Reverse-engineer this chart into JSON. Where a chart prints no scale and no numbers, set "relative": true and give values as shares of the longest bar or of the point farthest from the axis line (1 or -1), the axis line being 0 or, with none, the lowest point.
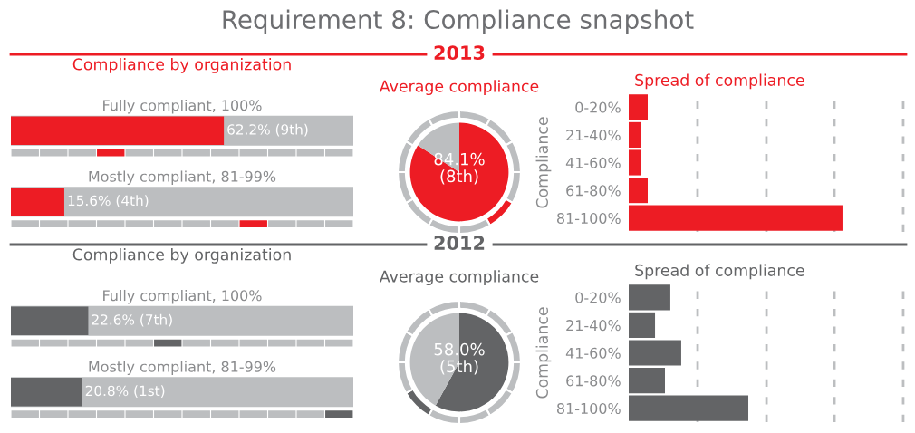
{
  "chart_data": [
    {
      "type": "other",
      "title": "Requirement 8: Compliance snapshot",
      "annotations": [
        "2013",
        "2012"
      ]
    },
    {
      "type": "bar",
      "orientation": "horizontal",
      "title": "Compliance by organization",
      "categories": [
        "Fully compliant, 100%",
        "Mostly compliant, 81-99%"
      ],
      "values": [
        62.2,
        15.6
      ],
      "value_labels": [
        "62.2% (9th)",
        "15.6% (4th)"
      ],
      "color": "#ed1c24",
      "xlim": [
        0,
        100
      ]
    },
    {
      "type": "pie",
      "title": "Average compliance",
      "series": [
        {
          "values": [
            84.1,
            15.9
          ],
          "colors": [
            "#ed1c24",
            "#bcbec0"
          ],
          "value_labels": [
            "84.1%\n(8th)",
            null
          ]
        },
        {
          "values": [
            8.33,
            8.33,
            8.33,
            8.33,
            8.33,
            8.33,
            8.33,
            8.33,
            8.33,
            8.33,
            8.33,
            8.33
          ],
          "colors": [
            "#bcbec0",
            "#bcbec0",
            "#bcbec0",
            "#bcbec0",
            "#ed1c24",
            "#bcbec0",
            "#bcbec0",
            "#bcbec0",
            "#bcbec0",
            "#bcbec0",
            "#bcbec0",
            "#bcbec0"
          ]
        }
      ]
    },
    {
      "type": "bar",
      "orientation": "horizontal",
      "relative": true,
      "title": "Spread of compliance",
      "ylabel": "Compliance",
      "categories": [
        "0-20%",
        "21-40%",
        "41-60%",
        "61-80%",
        "81-100%"
      ],
      "values": [
        0.089,
        0.059,
        0.059,
        0.089,
        1
      ],
      "color": "#ed1c24",
      "ref_lines": [
        {
          "axis": "x",
          "value": 0.322,
          "color": "#bcbec0",
          "line_style": "dashed"
        },
        {
          "axis": "x",
          "value": 0.644,
          "color": "#bcbec0",
          "line_style": "dashed"
        },
        {
          "axis": "x",
          "value": 0.962,
          "color": "#bcbec0",
          "line_style": "dashed"
        },
        {
          "axis": "x",
          "value": 1.284,
          "color": "#bcbec0",
          "line_style": "dashed"
        }
      ]
    },
    {
      "type": "bar",
      "orientation": "horizontal",
      "title": "Compliance by organization",
      "categories": [
        "Fully compliant, 100%",
        "Mostly compliant, 81-99%"
      ],
      "values": [
        22.6,
        20.8
      ],
      "value_labels": [
        "22.6% (7th)",
        "20.8% (1st)"
      ],
      "color": "#636466",
      "xlim": [
        0,
        100
      ]
    },
    {
      "type": "pie",
      "title": "Average compliance",
      "series": [
        {
          "values": [
            58.0,
            42.0
          ],
          "colors": [
            "#636466",
            "#bcbec0"
          ],
          "value_labels": [
            "58.0%\n(5th)",
            null
          ]
        },
        {
          "values": [
            8.33,
            8.33,
            8.33,
            8.33,
            8.33,
            8.33,
            8.33,
            8.33,
            8.33,
            8.33,
            8.33,
            8.33
          ],
          "colors": [
            "#bcbec0",
            "#bcbec0",
            "#bcbec0",
            "#bcbec0",
            "#bcbec0",
            "#bcbec0",
            "#bcbec0",
            "#636466",
            "#bcbec0",
            "#bcbec0",
            "#bcbec0",
            "#bcbec0"
          ]
        }
      ]
    },
    {
      "type": "bar",
      "orientation": "horizontal",
      "relative": true,
      "title": "Spread of compliance",
      "ylabel": "Compliance",
      "categories": [
        "0-20%",
        "21-40%",
        "41-60%",
        "61-80%",
        "81-100%"
      ],
      "values": [
        0.348,
        0.22,
        0.439,
        0.303,
        1
      ],
      "color": "#636466",
      "ref_lines": [
        {
          "axis": "x",
          "value": 0.576,
          "color": "#bcbec0",
          "line_style": "dashed"
        },
        {
          "axis": "x",
          "value": 1.152,
          "color": "#bcbec0",
          "line_style": "dashed"
        },
        {
          "axis": "x",
          "value": 1.72,
          "color": "#bcbec0",
          "line_style": "dashed"
        },
        {
          "axis": "x",
          "value": 2.295,
          "color": "#bcbec0",
          "line_style": "dashed"
        }
      ]
    }
  ]
}
